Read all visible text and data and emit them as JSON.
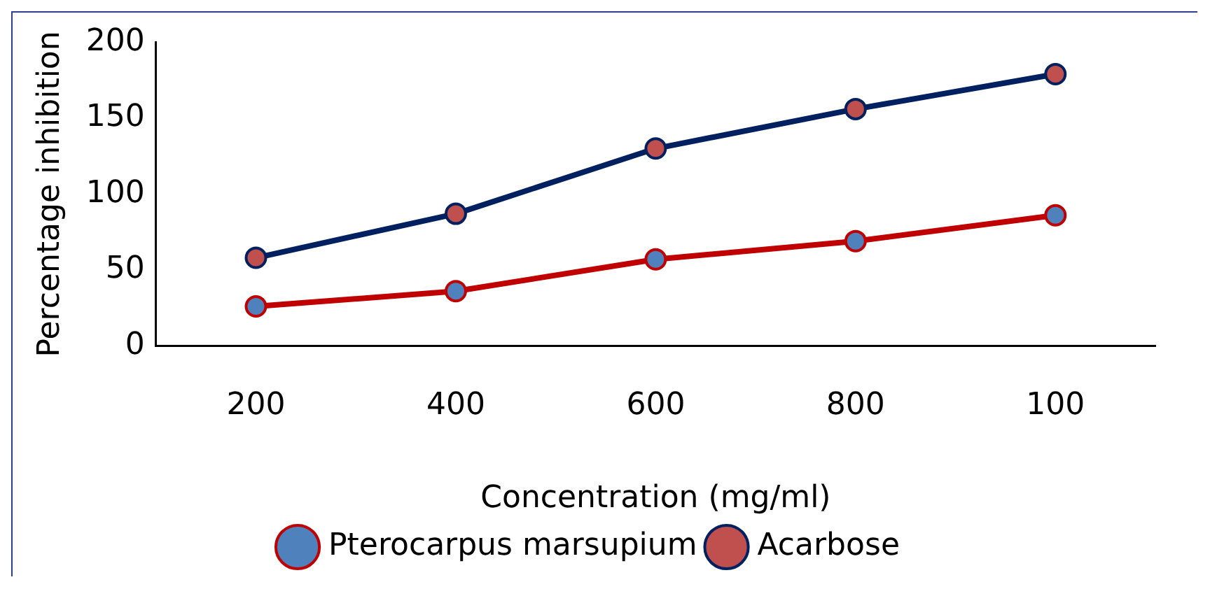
{
  "chart_data": {
    "type": "line",
    "xlabel": "Concentration (mg/ml)",
    "ylabel": "Percentage inhibition",
    "categories": [
      "200",
      "400",
      "600",
      "800",
      "100"
    ],
    "series": [
      {
        "name": "Pterocarpus marsupium",
        "color": "#c00000",
        "values": [
          26,
          36,
          57,
          69,
          86
        ]
      },
      {
        "name": "Acarbose",
        "color": "#002060",
        "values": [
          58,
          87,
          130,
          156,
          179
        ]
      }
    ],
    "ylim": [
      0,
      200
    ],
    "yticks": [
      0,
      50,
      100,
      150,
      200
    ],
    "grid": false,
    "legend": "bottom",
    "marker": "circle",
    "line_style": "solid"
  }
}
